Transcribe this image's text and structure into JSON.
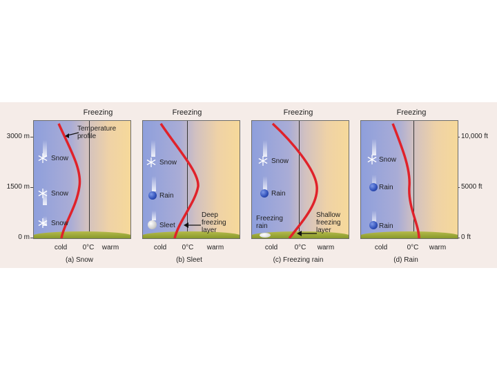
{
  "left_axis": [
    "3000 m",
    "1500 m",
    "0 m"
  ],
  "right_axis": [
    "10,000 ft",
    "5000 ft",
    "0 ft"
  ],
  "panels": [
    {
      "top_label": "Freezing",
      "bottom_labels": [
        "cold",
        "0°C",
        "warm"
      ],
      "caption": "(a) Snow",
      "precip_labels": [
        "Snow",
        "Snow",
        "Snow"
      ],
      "annotation": "Temperature\nprofile"
    },
    {
      "top_label": "Freezing",
      "bottom_labels": [
        "cold",
        "0°C",
        "warm"
      ],
      "caption": "(b) Sleet",
      "precip_labels": [
        "Snow",
        "Rain",
        "Sleet"
      ],
      "annotation": "Deep\nfreezing\nlayer"
    },
    {
      "top_label": "Freezing",
      "bottom_labels": [
        "cold",
        "0°C",
        "warm"
      ],
      "caption": "(c) Freezing rain",
      "precip_labels": [
        "Snow",
        "Rain",
        "Freezing\nrain"
      ],
      "annotation": "Shallow\nfreezing\nlayer"
    },
    {
      "top_label": "Freezing",
      "bottom_labels": [
        "cold",
        "0°C",
        "warm"
      ],
      "caption": "(d) Rain",
      "precip_labels": [
        "Snow",
        "Rain",
        "Rain"
      ],
      "annotation": ""
    }
  ],
  "colors": {
    "profile": "#e0222a",
    "cold": "#8e9fdc",
    "warm": "#f6d99a",
    "ground": "#8a9a2e"
  },
  "icons": [
    "snowflake-icon",
    "raindrop-icon",
    "sleet-pellet-icon",
    "freezing-drop-icon"
  ]
}
